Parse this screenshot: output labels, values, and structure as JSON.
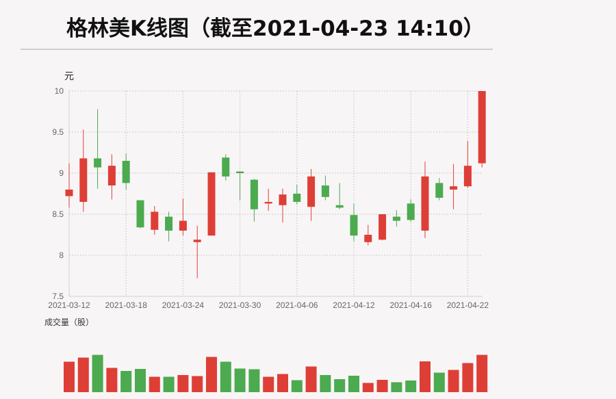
{
  "title": "格林美K线图（截至2021-04-23 14:10）",
  "chart_data": {
    "type": "candlestick",
    "ylabel": "元",
    "volume_label": "成交量（股）",
    "ylim": [
      7.5,
      10
    ],
    "yticks": [
      "10",
      "9.5",
      "9",
      "8.5",
      "8",
      "7.5"
    ],
    "xtick_labels": [
      "2021-03-12",
      "2021-03-18",
      "2021-03-24",
      "2021-03-30",
      "2021-04-06",
      "2021-04-12",
      "2021-04-16",
      "2021-04-22"
    ],
    "grid": true,
    "colors": {
      "up": "#dd3f36",
      "down": "#4caa4f"
    },
    "candles": [
      {
        "date": "2021-03-12",
        "open": 8.72,
        "close": 8.8,
        "high": 9.12,
        "low": 8.58
      },
      {
        "date": "2021-03-15",
        "open": 8.65,
        "close": 9.18,
        "high": 9.53,
        "low": 8.53
      },
      {
        "date": "2021-03-16",
        "open": 9.18,
        "close": 9.07,
        "high": 9.78,
        "low": 8.81
      },
      {
        "date": "2021-03-17",
        "open": 8.85,
        "close": 9.09,
        "high": 9.23,
        "low": 8.68
      },
      {
        "date": "2021-03-18",
        "open": 9.15,
        "close": 8.88,
        "high": 9.24,
        "low": 8.8
      },
      {
        "date": "2021-03-19",
        "open": 8.67,
        "close": 8.34,
        "high": 8.67,
        "low": 8.33
      },
      {
        "date": "2021-03-22",
        "open": 8.31,
        "close": 8.53,
        "high": 8.6,
        "low": 8.25
      },
      {
        "date": "2021-03-23",
        "open": 8.47,
        "close": 8.3,
        "high": 8.53,
        "low": 8.17
      },
      {
        "date": "2021-03-24",
        "open": 8.3,
        "close": 8.42,
        "high": 8.69,
        "low": 8.24
      },
      {
        "date": "2021-03-25",
        "open": 8.16,
        "close": 8.19,
        "high": 8.36,
        "low": 7.72
      },
      {
        "date": "2021-03-26",
        "open": 8.24,
        "close": 9.01,
        "high": 9.01,
        "low": 8.24
      },
      {
        "date": "2021-03-29",
        "open": 9.19,
        "close": 8.96,
        "high": 9.23,
        "low": 8.91
      },
      {
        "date": "2021-03-30",
        "open": 9.02,
        "close": 9.0,
        "high": 9.02,
        "low": 8.67
      },
      {
        "date": "2021-03-31",
        "open": 8.92,
        "close": 8.56,
        "high": 8.93,
        "low": 8.41
      },
      {
        "date": "2021-04-01",
        "open": 8.63,
        "close": 8.65,
        "high": 8.81,
        "low": 8.54
      },
      {
        "date": "2021-04-02",
        "open": 8.61,
        "close": 8.74,
        "high": 8.81,
        "low": 8.4
      },
      {
        "date": "2021-04-06",
        "open": 8.75,
        "close": 8.65,
        "high": 8.86,
        "low": 8.62
      },
      {
        "date": "2021-04-07",
        "open": 8.59,
        "close": 8.96,
        "high": 9.05,
        "low": 8.42
      },
      {
        "date": "2021-04-08",
        "open": 8.85,
        "close": 8.71,
        "high": 8.97,
        "low": 8.67
      },
      {
        "date": "2021-04-09",
        "open": 8.61,
        "close": 8.58,
        "high": 8.88,
        "low": 8.56
      },
      {
        "date": "2021-04-12",
        "open": 8.49,
        "close": 8.24,
        "high": 8.63,
        "low": 8.17
      },
      {
        "date": "2021-04-13",
        "open": 8.16,
        "close": 8.25,
        "high": 8.37,
        "low": 8.12
      },
      {
        "date": "2021-04-14",
        "open": 8.19,
        "close": 8.5,
        "high": 8.5,
        "low": 8.18
      },
      {
        "date": "2021-04-15",
        "open": 8.47,
        "close": 8.42,
        "high": 8.55,
        "low": 8.35
      },
      {
        "date": "2021-04-16",
        "open": 8.63,
        "close": 8.43,
        "high": 8.68,
        "low": 8.41
      },
      {
        "date": "2021-04-19",
        "open": 8.3,
        "close": 8.96,
        "high": 9.14,
        "low": 8.21
      },
      {
        "date": "2021-04-20",
        "open": 8.88,
        "close": 8.7,
        "high": 8.94,
        "low": 8.67
      },
      {
        "date": "2021-04-21",
        "open": 8.8,
        "close": 8.84,
        "high": 9.11,
        "low": 8.56
      },
      {
        "date": "2021-04-22",
        "open": 8.84,
        "close": 9.09,
        "high": 9.39,
        "low": 8.82
      },
      {
        "date": "2021-04-23",
        "open": 9.12,
        "close": 10.0,
        "high": 10.0,
        "low": 9.07
      }
    ],
    "volume": [
      44.5,
      50.5,
      54.5,
      35.5,
      31.0,
      34.0,
      22.5,
      22.5,
      25.0,
      23.5,
      51.5,
      44.5,
      34.5,
      33.5,
      22.5,
      26.5,
      17.5,
      37.5,
      25.0,
      19.0,
      24.0,
      13.5,
      18.0,
      14.5,
      17.0,
      45.0,
      28.5,
      32.5,
      42.5,
      54.5
    ]
  }
}
